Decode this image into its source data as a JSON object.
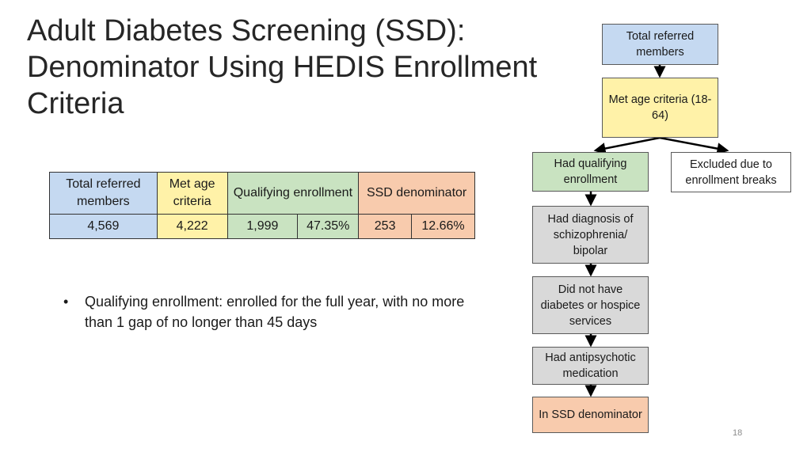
{
  "title_lines": [
    "Adult Diabetes Screening (SSD):",
    "Denominator Using HEDIS Enrollment",
    "Criteria"
  ],
  "table": {
    "headers": [
      "Total referred members",
      "Met age criteria",
      "Qualifying enrollment",
      "SSD denominator"
    ],
    "values": [
      "4,569",
      "4,222",
      "1,999",
      "47.35%",
      "253",
      "12.66%"
    ]
  },
  "bullet": "Qualifying enrollment: enrolled for the full year, with no more than 1 gap of no longer than 45 days",
  "bullet_marker": "•",
  "flow": {
    "total_referred": "Total referred members",
    "met_age": "Met age criteria (18-64)",
    "qualifying_enrollment": "Had qualifying enrollment",
    "excluded": "Excluded due to enrollment breaks",
    "diagnosis": "Had diagnosis of schizophrenia/ bipolar",
    "no_diabetes": "Did not have diabetes or hospice services",
    "antipsychotic": "Had antipsychotic medication",
    "ssd_denominator": "In SSD denominator"
  },
  "page_number": "18",
  "colors": {
    "blue": "#c5d9f1",
    "yellow": "#fff2a8",
    "green": "#c9e3c1",
    "orange": "#f8cbad",
    "gray": "#d9d9d9"
  }
}
